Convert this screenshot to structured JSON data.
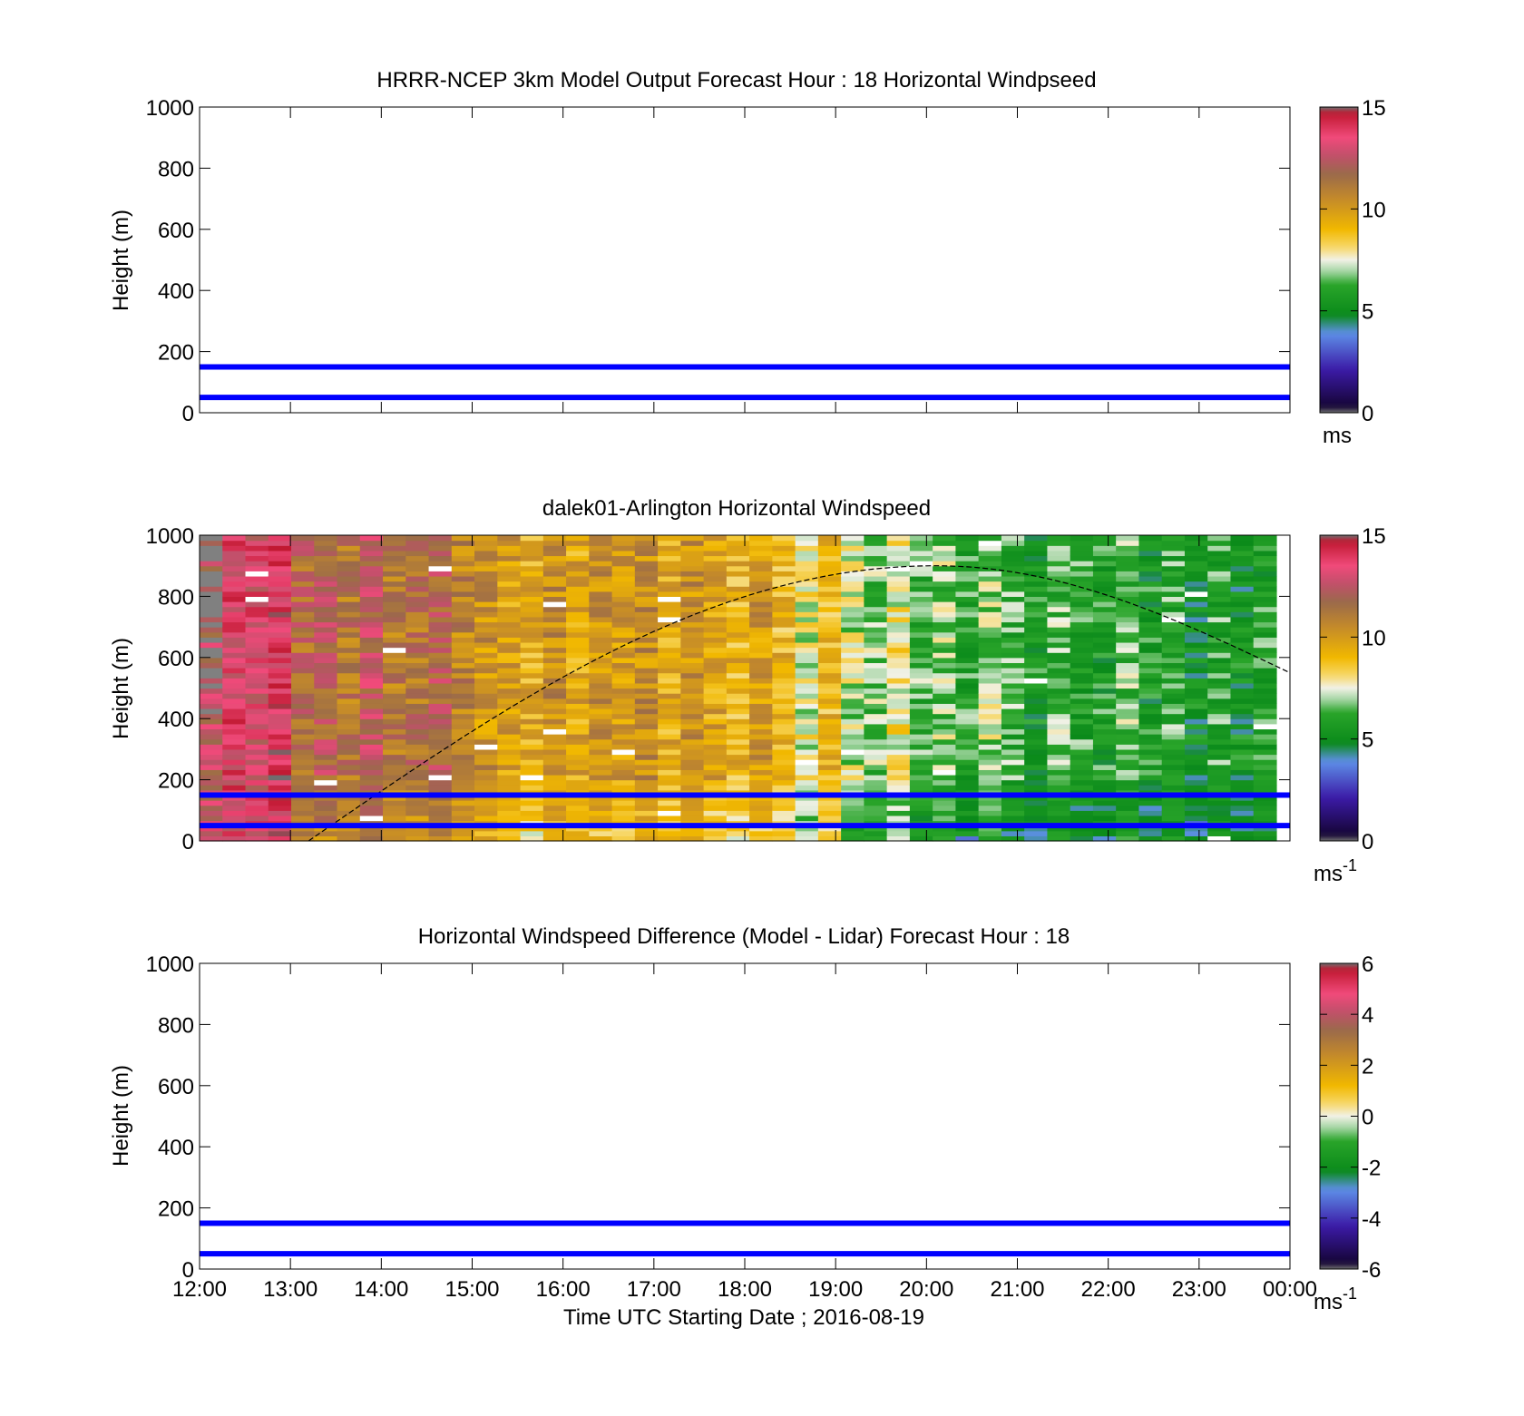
{
  "chart_data": [
    {
      "type": "heatmap",
      "title": "HRRR-NCEP 3km Model Output   Forecast Hour : 18 Horizontal Windpseed",
      "ylabel": "Height (m)",
      "xlabel": "",
      "ylim": [
        0,
        1000
      ],
      "yticks": [
        0,
        200,
        400,
        600,
        800,
        1000
      ],
      "xticks": [
        "12:00",
        "13:00",
        "14:00",
        "15:00",
        "16:00",
        "17:00",
        "18:00",
        "19:00",
        "20:00",
        "21:00",
        "22:00",
        "23:00",
        "00:00"
      ],
      "show_xtick_labels": false,
      "reference_lines_m": [
        50,
        150
      ],
      "reference_line_color": "#0000ff",
      "colorbar": {
        "min": 0,
        "max": 15,
        "ticks": [
          0,
          5,
          10,
          15
        ],
        "unit": "ms",
        "unit_sup": ""
      },
      "field": "empty"
    },
    {
      "type": "heatmap",
      "title": "dalek01-Arlington  Horizontal Windspeed",
      "ylabel": "Height (m)",
      "xlabel": "",
      "ylim": [
        0,
        1000
      ],
      "yticks": [
        0,
        200,
        400,
        600,
        800,
        1000
      ],
      "xticks": [
        "12:00",
        "13:00",
        "14:00",
        "15:00",
        "16:00",
        "17:00",
        "18:00",
        "19:00",
        "20:00",
        "21:00",
        "22:00",
        "23:00",
        "00:00"
      ],
      "show_xtick_labels": false,
      "reference_lines_m": [
        50,
        150
      ],
      "reference_line_color": "#0000ff",
      "colorbar": {
        "min": 0,
        "max": 15,
        "ticks": [
          0,
          5,
          10,
          15
        ],
        "unit": "ms",
        "unit_sup": "-1"
      },
      "data_end_hour": 23.85,
      "column_windspeed_ms": [
        12.6,
        13.5,
        13.2,
        13.8,
        11.6,
        12.0,
        11.2,
        12.4,
        11.0,
        11.3,
        12.0,
        10.8,
        10.2,
        9.8,
        9.4,
        10.4,
        9.6,
        10.3,
        9.8,
        10.4,
        9.5,
        10.3,
        9.6,
        9.2,
        10.0,
        9.1,
        7.6,
        9.0,
        7.2,
        6.7,
        7.8,
        6.4,
        6.8,
        6.0,
        6.9,
        6.3,
        5.5,
        6.5,
        6.0,
        5.8,
        6.6,
        5.6,
        6.2,
        5.2,
        6.1,
        5.3,
        5.9
      ],
      "boundary_layer_curve": {
        "start_hour": 13.2,
        "start_m": 0,
        "peak_hour": 20.1,
        "peak_m": 900,
        "end_hour": 24.0,
        "end_m": 550
      }
    },
    {
      "type": "heatmap",
      "title": "Horizontal Windspeed Difference (Model - Lidar) Forecast Hour : 18",
      "ylabel": "Height (m)",
      "xlabel": "Time UTC  Starting Date ; 2016-08-19",
      "ylim": [
        0,
        1000
      ],
      "yticks": [
        0,
        200,
        400,
        600,
        800,
        1000
      ],
      "xticks": [
        "12:00",
        "13:00",
        "14:00",
        "15:00",
        "16:00",
        "17:00",
        "18:00",
        "19:00",
        "20:00",
        "21:00",
        "22:00",
        "23:00",
        "00:00"
      ],
      "show_xtick_labels": true,
      "reference_lines_m": [
        50,
        150
      ],
      "reference_line_color": "#0000ff",
      "colorbar": {
        "min": -6,
        "max": 6,
        "ticks": [
          -6,
          -4,
          -2,
          0,
          2,
          4,
          6
        ],
        "unit": "ms",
        "unit_sup": "-1"
      },
      "field": "empty"
    }
  ],
  "colormap": [
    "#6f6f6f",
    "#150535",
    "#3b1aa6",
    "#5e8fe8",
    "#0a8a1a",
    "#2aa52a",
    "#9fd39f",
    "#f1f1e6",
    "#f7d86b",
    "#f1b800",
    "#c48a2a",
    "#9a6a4a",
    "#c0506a",
    "#f04a7a",
    "#c01830",
    "#6f6f6f"
  ],
  "colormap_stops": [
    0,
    0.02,
    0.14,
    0.26,
    0.32,
    0.42,
    0.46,
    0.5,
    0.54,
    0.6,
    0.7,
    0.78,
    0.84,
    0.9,
    0.98,
    1.0
  ]
}
